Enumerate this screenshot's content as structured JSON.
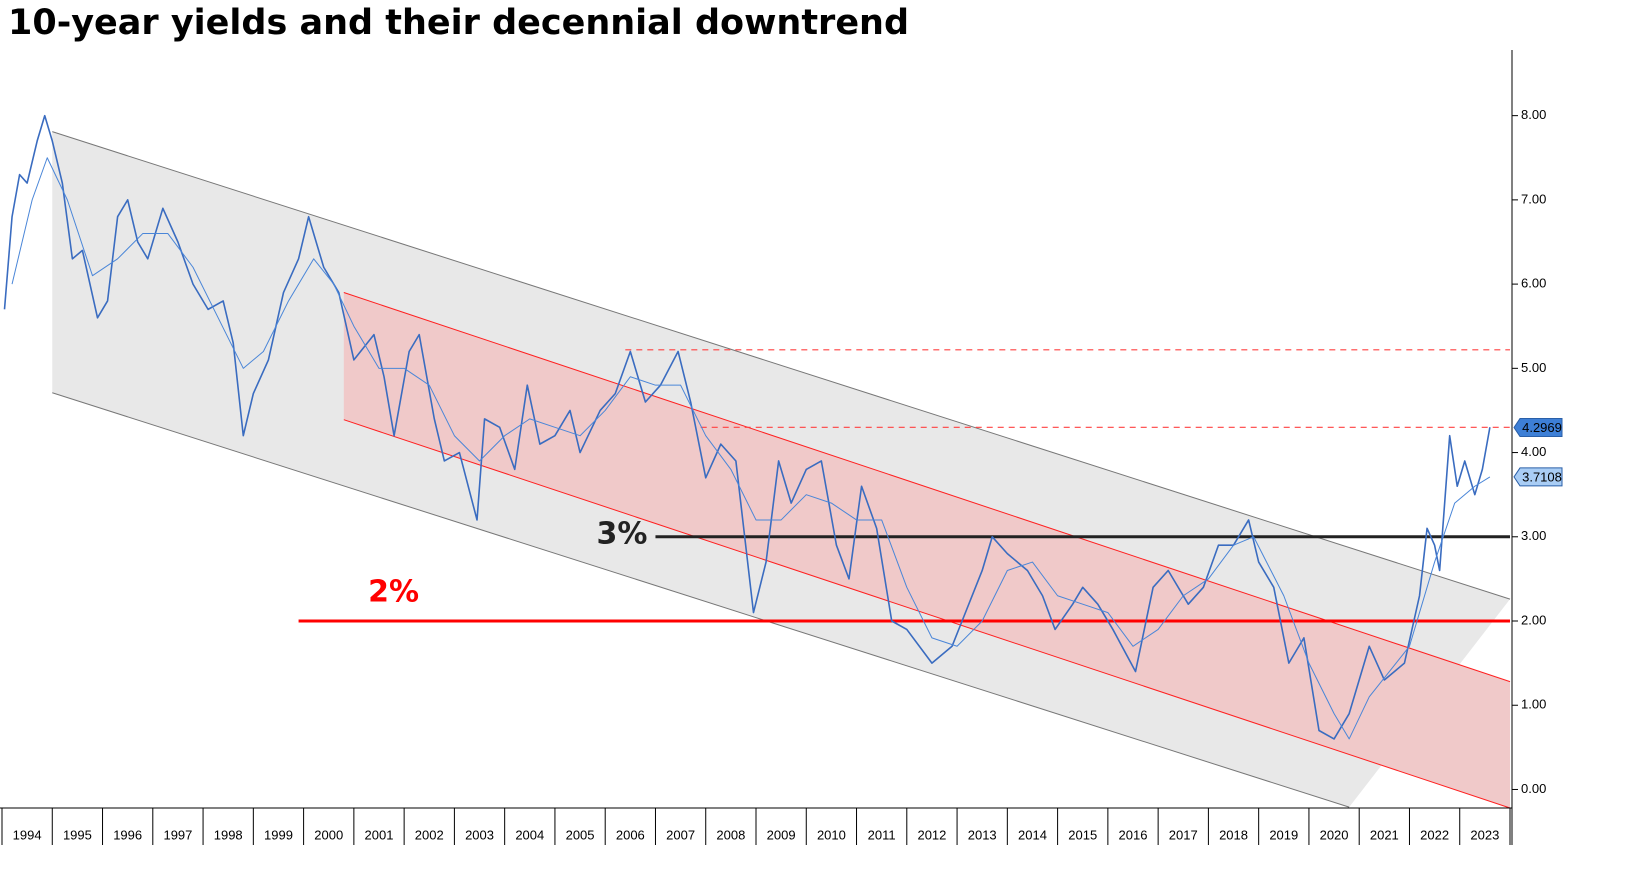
{
  "chart_data": {
    "type": "line",
    "title": "10-year yields and their decennial downtrend",
    "xlim": [
      1994,
      2024
    ],
    "xticks": [
      1994,
      1995,
      1996,
      1997,
      1998,
      1999,
      2000,
      2001,
      2002,
      2003,
      2004,
      2005,
      2006,
      2007,
      2008,
      2009,
      2010,
      2011,
      2012,
      2013,
      2014,
      2015,
      2016,
      2017,
      2018,
      2019,
      2020,
      2021,
      2022,
      2023
    ],
    "ylim": [
      -0.22,
      8.72
    ],
    "yticks": [
      {
        "value": 0,
        "label": "0.00"
      },
      {
        "value": 1,
        "label": "1.00"
      },
      {
        "value": 2,
        "label": "2.00"
      },
      {
        "value": 3,
        "label": "3.00"
      },
      {
        "value": 4,
        "label": "4.00"
      },
      {
        "value": 5,
        "label": "5.00"
      },
      {
        "value": 6,
        "label": "6.00"
      },
      {
        "value": 7,
        "label": "7.00"
      },
      {
        "value": 8,
        "label": "8.00"
      }
    ],
    "channels": [
      {
        "color": "#e8e8e8",
        "edge_color": "#777777",
        "upper": {
          "x": [
            1995.0,
            2024.0
          ],
          "y": [
            7.81,
            2.26
          ]
        },
        "lower": {
          "x": [
            1995.0,
            2020.8
          ],
          "y": [
            4.71,
            -0.21
          ]
        }
      },
      {
        "color": "#f0c9c9",
        "edge_color": "#ff2020",
        "upper": {
          "x": [
            2000.8,
            2024.0
          ],
          "y": [
            5.9,
            1.28
          ]
        },
        "lower": {
          "x": [
            2000.8,
            2024.0
          ],
          "y": [
            4.39,
            -0.22
          ]
        }
      }
    ],
    "hlines": [
      {
        "value": 3,
        "label": "3%",
        "color": "#222222",
        "x_start": 2007.0
      },
      {
        "value": 2,
        "label": "2%",
        "color": "#ff0000",
        "x_start": 1999.9
      }
    ],
    "dashed_levels": [
      {
        "value": 5.22,
        "x_start": 2006.4,
        "color": "#ff4040"
      },
      {
        "value": 4.3,
        "x_start": 2007.9,
        "color": "#ff4040"
      }
    ],
    "series": [
      {
        "color": "#3a6cc0",
        "x": [
          1994.05,
          1994.2,
          1994.35,
          1994.5,
          1994.7,
          1994.85,
          1995.0,
          1995.2,
          1995.4,
          1995.6,
          1995.9,
          1996.1,
          1996.3,
          1996.5,
          1996.7,
          1996.9,
          1997.2,
          1997.5,
          1997.8,
          1998.1,
          1998.4,
          1998.6,
          1998.8,
          1999.0,
          1999.3,
          1999.6,
          1999.9,
          2000.1,
          2000.4,
          2000.7,
          2001.0,
          2001.4,
          2001.6,
          2001.8,
          2002.1,
          2002.3,
          2002.6,
          2002.8,
          2003.1,
          2003.45,
          2003.6,
          2003.9,
          2004.2,
          2004.45,
          2004.7,
          2005.0,
          2005.3,
          2005.5,
          2005.9,
          2006.2,
          2006.5,
          2006.8,
          2007.1,
          2007.45,
          2007.7,
          2008.0,
          2008.3,
          2008.6,
          2008.95,
          2009.2,
          2009.45,
          2009.7,
          2010.0,
          2010.3,
          2010.6,
          2010.85,
          2011.1,
          2011.4,
          2011.7,
          2012.0,
          2012.5,
          2012.9,
          2013.1,
          2013.5,
          2013.7,
          2014.0,
          2014.4,
          2014.7,
          2014.95,
          2015.3,
          2015.5,
          2015.8,
          2016.1,
          2016.55,
          2016.9,
          2017.2,
          2017.6,
          2017.9,
          2018.2,
          2018.5,
          2018.8,
          2019.0,
          2019.3,
          2019.6,
          2019.9,
          2020.2,
          2020.5,
          2020.8,
          2021.2,
          2021.5,
          2021.9,
          2022.2,
          2022.35,
          2022.5,
          2022.6,
          2022.8,
          2022.95,
          2023.1,
          2023.3,
          2023.45,
          2023.6
        ],
        "values": [
          5.7,
          6.8,
          7.3,
          7.2,
          7.7,
          8.0,
          7.7,
          7.2,
          6.3,
          6.4,
          5.6,
          5.8,
          6.8,
          7.0,
          6.5,
          6.3,
          6.9,
          6.5,
          6.0,
          5.7,
          5.8,
          5.3,
          4.2,
          4.7,
          5.1,
          5.9,
          6.3,
          6.8,
          6.2,
          5.9,
          5.1,
          5.4,
          4.9,
          4.2,
          5.2,
          5.4,
          4.4,
          3.9,
          4.0,
          3.2,
          4.4,
          4.3,
          3.8,
          4.8,
          4.1,
          4.2,
          4.5,
          4.0,
          4.5,
          4.7,
          5.2,
          4.6,
          4.8,
          5.2,
          4.6,
          3.7,
          4.1,
          3.9,
          2.1,
          2.7,
          3.9,
          3.4,
          3.8,
          3.9,
          2.9,
          2.5,
          3.6,
          3.1,
          2.0,
          1.9,
          1.5,
          1.7,
          2.0,
          2.6,
          3.0,
          2.8,
          2.6,
          2.3,
          1.9,
          2.2,
          2.4,
          2.2,
          1.9,
          1.4,
          2.4,
          2.6,
          2.2,
          2.4,
          2.9,
          2.9,
          3.2,
          2.7,
          2.4,
          1.5,
          1.8,
          0.7,
          0.6,
          0.9,
          1.7,
          1.3,
          1.5,
          2.3,
          3.1,
          2.9,
          2.6,
          4.2,
          3.6,
          3.9,
          3.5,
          3.8,
          4.3
        ],
        "last_value": 4.2969,
        "tag_fill": "#3d7fd6",
        "tag_text": "#ffffff",
        "width": 1.6
      },
      {
        "color": "#4a86d8",
        "x": [
          1994.2,
          1994.6,
          1994.9,
          1995.3,
          1995.8,
          1996.3,
          1996.8,
          1997.3,
          1997.8,
          1998.3,
          1998.8,
          1999.2,
          1999.7,
          2000.2,
          2000.6,
          2001.0,
          2001.5,
          2002.0,
          2002.5,
          2003.0,
          2003.5,
          2004.0,
          2004.5,
          2005.0,
          2005.5,
          2006.0,
          2006.5,
          2007.0,
          2007.5,
          2008.0,
          2008.5,
          2009.0,
          2009.5,
          2010.0,
          2010.5,
          2011.0,
          2011.5,
          2012.0,
          2012.5,
          2013.0,
          2013.5,
          2014.0,
          2014.5,
          2015.0,
          2015.5,
          2016.0,
          2016.5,
          2017.0,
          2017.5,
          2018.0,
          2018.5,
          2018.9,
          2019.5,
          2020.0,
          2020.5,
          2020.8,
          2021.2,
          2021.6,
          2022.0,
          2022.5,
          2022.9,
          2023.3,
          2023.6
        ],
        "values": [
          6.0,
          7.0,
          7.5,
          7.0,
          6.1,
          6.3,
          6.6,
          6.6,
          6.2,
          5.6,
          5.0,
          5.2,
          5.8,
          6.3,
          6.0,
          5.5,
          5.0,
          5.0,
          4.8,
          4.2,
          3.9,
          4.2,
          4.4,
          4.3,
          4.2,
          4.5,
          4.9,
          4.8,
          4.8,
          4.2,
          3.8,
          3.2,
          3.2,
          3.5,
          3.4,
          3.2,
          3.2,
          2.4,
          1.8,
          1.7,
          2.0,
          2.6,
          2.7,
          2.3,
          2.2,
          2.1,
          1.7,
          1.9,
          2.3,
          2.5,
          2.9,
          3.0,
          2.3,
          1.5,
          0.9,
          0.6,
          1.1,
          1.4,
          1.7,
          2.7,
          3.4,
          3.6,
          3.71
        ],
        "last_value": 3.7108,
        "tag_fill": "#a9cdf5",
        "tag_text": "#000000",
        "width": 1
      }
    ]
  }
}
